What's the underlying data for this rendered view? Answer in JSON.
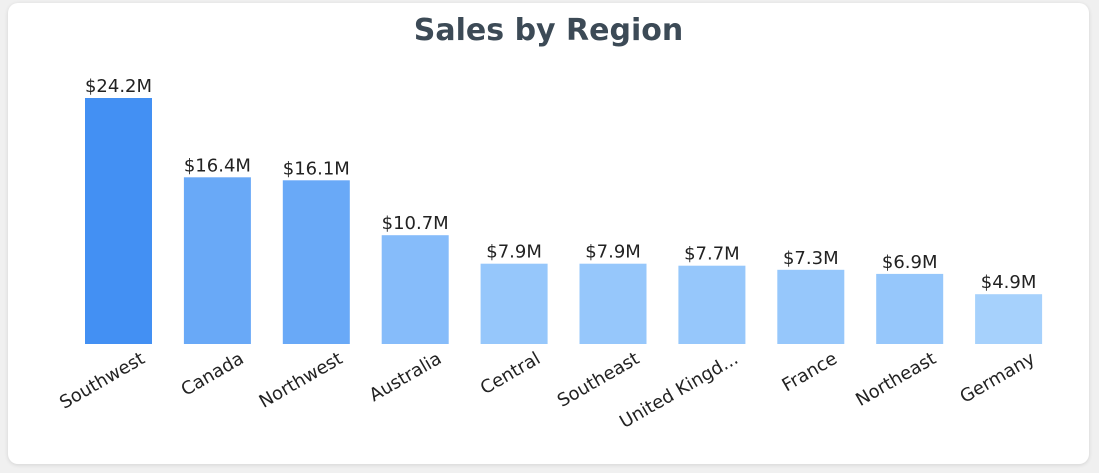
{
  "chart_data": {
    "type": "bar",
    "title": "Sales by Region",
    "categories": [
      "Southwest",
      "Canada",
      "Northwest",
      "Australia",
      "Central",
      "Southeast",
      "United Kingd...",
      "France",
      "Northeast",
      "Germany"
    ],
    "values": [
      24.2,
      16.4,
      16.1,
      10.7,
      7.9,
      7.9,
      7.7,
      7.3,
      6.9,
      4.9
    ],
    "value_labels": [
      "$24.2M",
      "$16.4M",
      "$16.1M",
      "$10.7M",
      "$7.9M",
      "$7.9M",
      "$7.7M",
      "$7.3M",
      "$6.9M",
      "$4.9M"
    ],
    "xlabel": "",
    "ylabel": "",
    "ylim": [
      0,
      24.2
    ],
    "grid": false,
    "legend": "none",
    "colors": {
      "darkest": "#4390f3",
      "dark": "#69a9f7",
      "mid": "#86bcfa",
      "light": "#96c7fb",
      "lightest": "#a6d1fc"
    }
  }
}
